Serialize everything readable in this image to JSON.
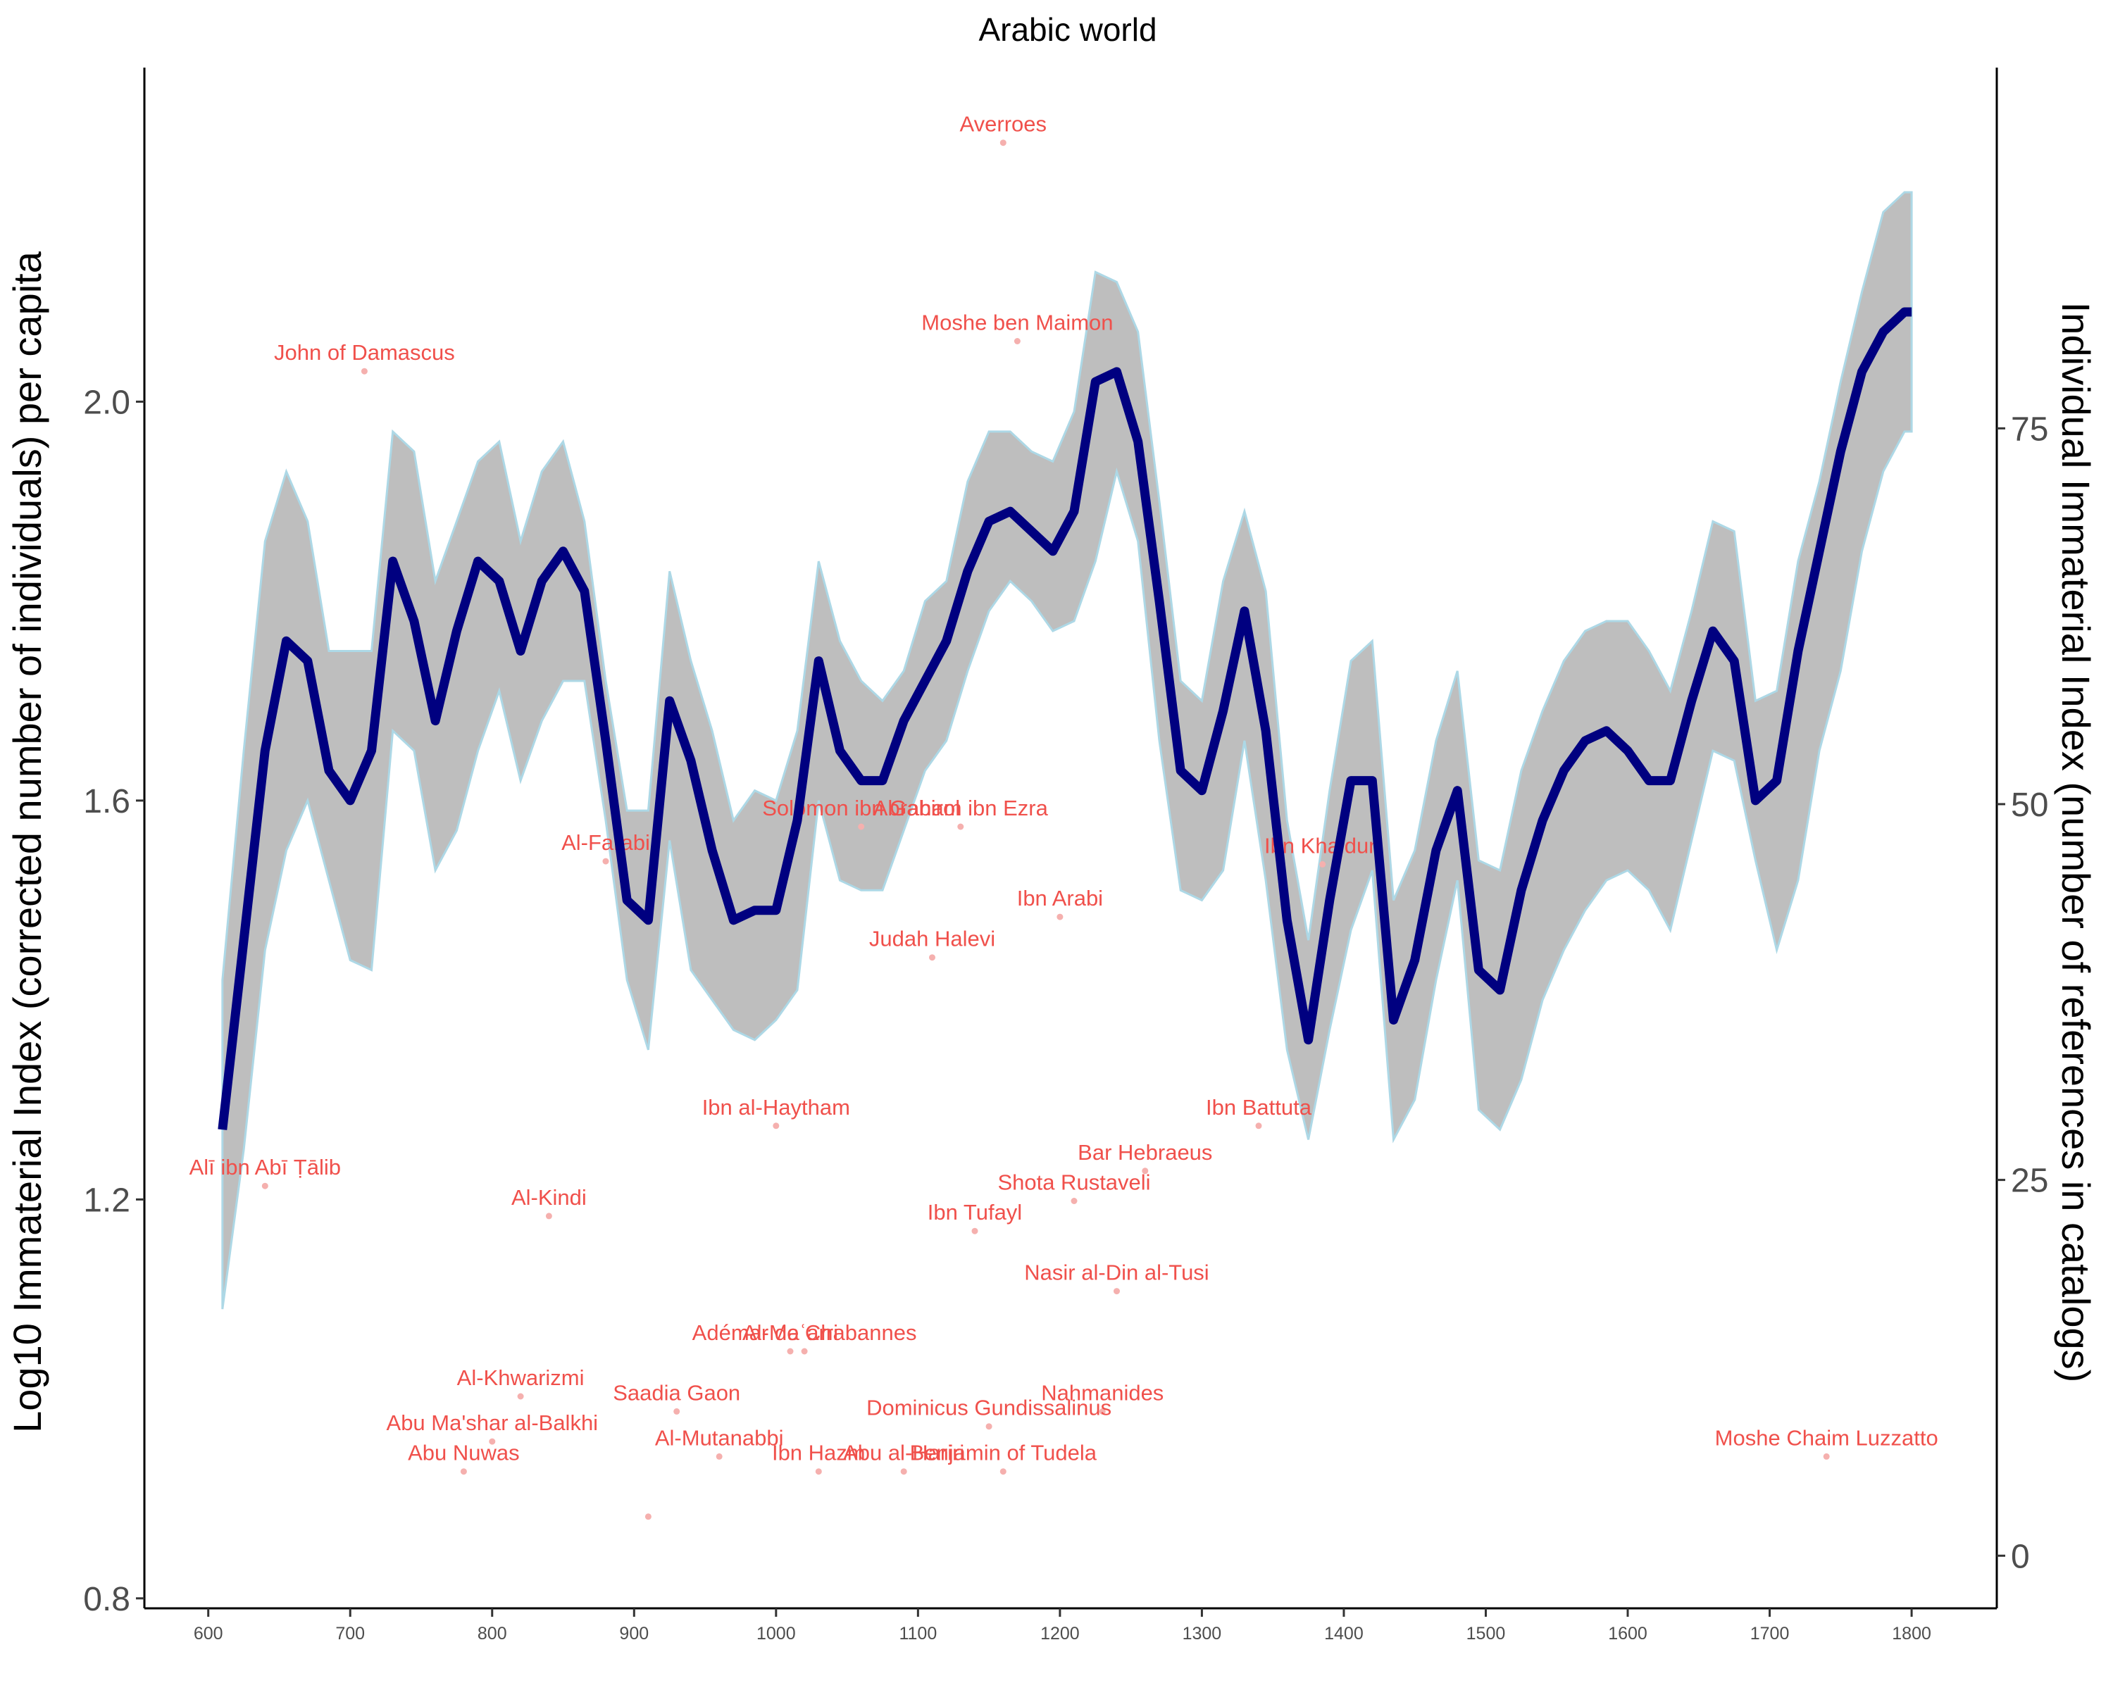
{
  "chart_data": {
    "type": "line",
    "title": "Arabic world",
    "ylabel": "Log10 Immaterial Index (corrected number of individuals) per capita",
    "y2label": "Individual Immaterial Index (number of references in catalogs)",
    "xlim": [
      555,
      1860
    ],
    "ylim": [
      0.79,
      2.335
    ],
    "y2lim": [
      -3.5,
      99
    ],
    "x_ticks": [
      600,
      700,
      800,
      900,
      1000,
      1100,
      1200,
      1300,
      1400,
      1500,
      1600,
      1700,
      1800
    ],
    "y_ticks": [
      0.8,
      1.2,
      1.6,
      2.0
    ],
    "y2_ticks": [
      0,
      25,
      50,
      75
    ],
    "colors": {
      "line": "#000080",
      "ribbon": "#bebebe",
      "ribbon_edge": "#add8e6",
      "label": "#f0504b",
      "point": "#f5b0ae",
      "axis": "#000000"
    },
    "series": [
      {
        "x": [
          610,
          625,
          640,
          655,
          670,
          685,
          700,
          715,
          730,
          745,
          760,
          775,
          790,
          805,
          820,
          835,
          850,
          865,
          880,
          895,
          910,
          925,
          940,
          955,
          970,
          985,
          1000,
          1015,
          1030,
          1045,
          1060,
          1075,
          1090,
          1105,
          1120,
          1135,
          1150,
          1165,
          1180,
          1195,
          1210,
          1225,
          1240,
          1255,
          1270,
          1285,
          1300,
          1315,
          1330,
          1345,
          1360,
          1375,
          1390,
          1405,
          1420,
          1435,
          1450,
          1465,
          1480,
          1495,
          1510,
          1525,
          1540,
          1555,
          1570,
          1585,
          1600,
          1615,
          1630,
          1645,
          1660,
          1675,
          1690,
          1705,
          1720,
          1735,
          1750,
          1765,
          1780,
          1795,
          1800
        ],
        "y": [
          1.27,
          1.46,
          1.65,
          1.76,
          1.74,
          1.63,
          1.6,
          1.65,
          1.84,
          1.78,
          1.68,
          1.77,
          1.84,
          1.82,
          1.75,
          1.82,
          1.85,
          1.81,
          1.66,
          1.5,
          1.48,
          1.7,
          1.64,
          1.55,
          1.48,
          1.49,
          1.49,
          1.58,
          1.74,
          1.65,
          1.62,
          1.62,
          1.68,
          1.72,
          1.76,
          1.83,
          1.88,
          1.89,
          1.87,
          1.85,
          1.89,
          2.02,
          2.03,
          1.96,
          1.8,
          1.63,
          1.61,
          1.69,
          1.79,
          1.67,
          1.48,
          1.36,
          1.5,
          1.62,
          1.62,
          1.38,
          1.44,
          1.55,
          1.61,
          1.43,
          1.41,
          1.51,
          1.58,
          1.63,
          1.66,
          1.67,
          1.65,
          1.62,
          1.62,
          1.7,
          1.77,
          1.74,
          1.6,
          1.62,
          1.75,
          1.85,
          1.95,
          2.03,
          2.07,
          2.09,
          2.09
        ],
        "lower": [
          1.09,
          1.25,
          1.45,
          1.55,
          1.6,
          1.52,
          1.44,
          1.43,
          1.67,
          1.65,
          1.53,
          1.57,
          1.65,
          1.71,
          1.62,
          1.68,
          1.72,
          1.72,
          1.58,
          1.42,
          1.35,
          1.56,
          1.43,
          1.4,
          1.37,
          1.36,
          1.38,
          1.41,
          1.6,
          1.52,
          1.51,
          1.51,
          1.57,
          1.63,
          1.66,
          1.73,
          1.79,
          1.82,
          1.8,
          1.77,
          1.78,
          1.84,
          1.93,
          1.86,
          1.66,
          1.51,
          1.5,
          1.53,
          1.66,
          1.52,
          1.35,
          1.26,
          1.37,
          1.47,
          1.53,
          1.26,
          1.3,
          1.42,
          1.52,
          1.29,
          1.27,
          1.32,
          1.4,
          1.45,
          1.49,
          1.52,
          1.53,
          1.51,
          1.47,
          1.56,
          1.65,
          1.64,
          1.54,
          1.45,
          1.52,
          1.65,
          1.73,
          1.85,
          1.93,
          1.97,
          1.97
        ],
        "upper": [
          1.42,
          1.65,
          1.86,
          1.93,
          1.88,
          1.75,
          1.75,
          1.75,
          1.97,
          1.95,
          1.82,
          1.88,
          1.94,
          1.96,
          1.86,
          1.93,
          1.96,
          1.88,
          1.72,
          1.59,
          1.59,
          1.83,
          1.74,
          1.67,
          1.58,
          1.61,
          1.6,
          1.67,
          1.84,
          1.76,
          1.72,
          1.7,
          1.73,
          1.8,
          1.82,
          1.92,
          1.97,
          1.97,
          1.95,
          1.94,
          1.99,
          2.13,
          2.12,
          2.07,
          1.9,
          1.72,
          1.7,
          1.82,
          1.89,
          1.81,
          1.58,
          1.46,
          1.61,
          1.74,
          1.76,
          1.5,
          1.55,
          1.66,
          1.73,
          1.54,
          1.53,
          1.63,
          1.69,
          1.74,
          1.77,
          1.78,
          1.78,
          1.75,
          1.71,
          1.79,
          1.88,
          1.87,
          1.7,
          1.71,
          1.84,
          1.92,
          2.02,
          2.11,
          2.19,
          2.21,
          2.21
        ]
      }
    ],
    "points": [
      {
        "name": "Averroes",
        "x": 1160,
        "y2": 94
      },
      {
        "name": "John of Damascus",
        "x": 710,
        "y2": 78.8
      },
      {
        "name": "Moshe ben Maimon",
        "x": 1170,
        "y2": 80.8
      },
      {
        "name": "Solomon ibn Gabirol",
        "x": 1060,
        "y2": 48.5
      },
      {
        "name": "Al-Farabi",
        "x": 880,
        "y2": 46.2
      },
      {
        "name": "Abraham ibn Ezra",
        "x": 1130,
        "y2": 48.5
      },
      {
        "name": "Ibn Khaldun",
        "x": 1385,
        "y2": 46
      },
      {
        "name": "Ibn Arabi",
        "x": 1200,
        "y2": 42.5
      },
      {
        "name": "Judah Halevi",
        "x": 1110,
        "y2": 39.8
      },
      {
        "name": "Ibn al-Haytham",
        "x": 1000,
        "y2": 28.6
      },
      {
        "name": "Ibn Battuta",
        "x": 1340,
        "y2": 28.6
      },
      {
        "name": "Bar Hebraeus",
        "x": 1260,
        "y2": 25.6
      },
      {
        "name": "Alī ibn Abī Ṭālib",
        "x": 640,
        "y2": 24.6
      },
      {
        "name": "Shota Rustaveli",
        "x": 1210,
        "y2": 23.6
      },
      {
        "name": "Al-Kindi",
        "x": 840,
        "y2": 22.6
      },
      {
        "name": "Ibn Tufayl",
        "x": 1140,
        "y2": 21.6
      },
      {
        "name": "Nasir al-Din al-Tusi",
        "x": 1240,
        "y2": 17.6
      },
      {
        "name": "Al-Maʿarri",
        "x": 1010,
        "y2": 13.6
      },
      {
        "name": "Adémar de Chabannes",
        "x": 1020,
        "y2": 13.6
      },
      {
        "name": "Al-Khwarizmi",
        "x": 820,
        "y2": 10.6
      },
      {
        "name": "Saadia Gaon",
        "x": 930,
        "y2": 9.6
      },
      {
        "name": "Nahmanides",
        "x": 1230,
        "y2": 9.6
      },
      {
        "name": "Abu Ma'shar al-Balkhi",
        "x": 800,
        "y2": 7.6
      },
      {
        "name": "Al-Mutanabbi",
        "x": 960,
        "y2": 6.6
      },
      {
        "name": "Dominicus Gundissalinus",
        "x": 1150,
        "y2": 8.6
      },
      {
        "name": "Abu Nuwas",
        "x": 780,
        "y2": 5.6
      },
      {
        "name": "Ibn Hazm",
        "x": 1030,
        "y2": 5.6
      },
      {
        "name": "Abu al-Hariri",
        "x": 1090,
        "y2": 5.6
      },
      {
        "name": "Benjamin of Tudela",
        "x": 1160,
        "y2": 5.6
      },
      {
        "name": "Moshe Chaim Luzzatto",
        "x": 1740,
        "y2": 6.6
      },
      {
        "name": "",
        "x": 910,
        "y2": 2.6
      }
    ]
  }
}
